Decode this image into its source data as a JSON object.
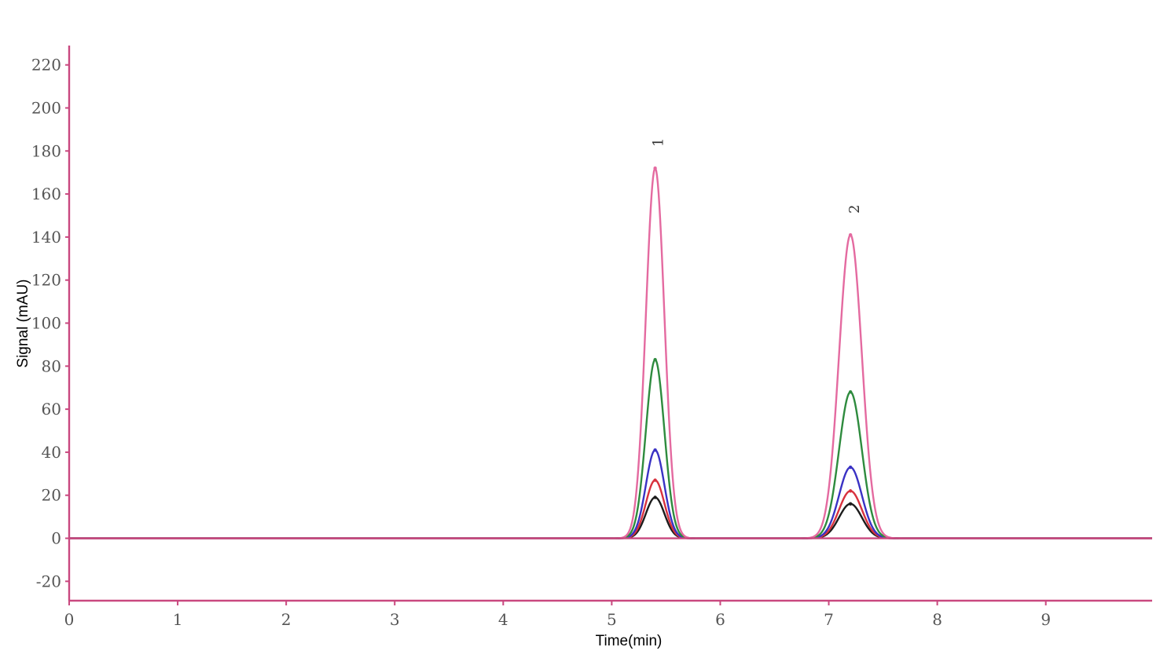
{
  "chart_data": {
    "type": "line",
    "title": "",
    "xlabel": "Time(min)",
    "ylabel": "Signal (mAU)",
    "xlim": [
      0,
      9.98
    ],
    "ylim": [
      -29,
      229
    ],
    "x_ticks": [
      0,
      1,
      2,
      3,
      4,
      5,
      6,
      7,
      8,
      9
    ],
    "y_ticks": [
      -20,
      0,
      20,
      40,
      60,
      80,
      100,
      120,
      140,
      160,
      180,
      200,
      220
    ],
    "grid": false,
    "legend": "none",
    "peak_labels": [
      {
        "text": "1",
        "x": 5.47,
        "y": 184
      },
      {
        "text": "2",
        "x": 7.28,
        "y": 153
      }
    ],
    "series": [
      {
        "color": "#e46aa0",
        "peaks": [
          {
            "x": 5.4,
            "y": 172,
            "width": 0.085
          },
          {
            "x": 7.2,
            "y": 141,
            "width": 0.105
          }
        ]
      },
      {
        "color": "#2e8b3e",
        "peaks": [
          {
            "x": 5.4,
            "y": 83,
            "width": 0.085
          },
          {
            "x": 7.2,
            "y": 68,
            "width": 0.105
          }
        ]
      },
      {
        "color": "#3a32c4",
        "peaks": [
          {
            "x": 5.4,
            "y": 41,
            "width": 0.085
          },
          {
            "x": 7.2,
            "y": 33,
            "width": 0.105
          }
        ]
      },
      {
        "color": "#d8323e",
        "peaks": [
          {
            "x": 5.4,
            "y": 27,
            "width": 0.085
          },
          {
            "x": 7.2,
            "y": 22,
            "width": 0.105
          }
        ]
      },
      {
        "color": "#1c1c1c",
        "peaks": [
          {
            "x": 5.4,
            "y": 19,
            "width": 0.085
          },
          {
            "x": 7.2,
            "y": 16,
            "width": 0.105
          }
        ]
      }
    ],
    "colors": {
      "axis": "#c9487f",
      "baseline": "#c9487f"
    }
  }
}
